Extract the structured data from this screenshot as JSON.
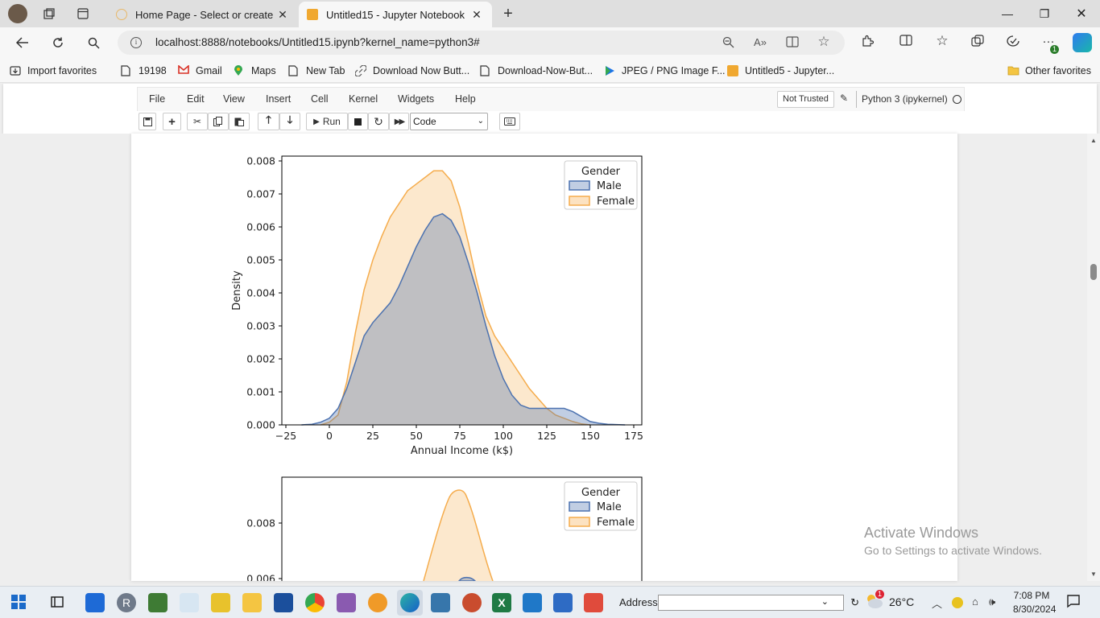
{
  "browser": {
    "tabs": [
      {
        "title": "Home Page - Select or create a n",
        "active": false
      },
      {
        "title": "Untitled15 - Jupyter Notebook",
        "active": true
      }
    ],
    "url": "localhost:8888/notebooks/Untitled15.ipynb?kernel_name=python3#",
    "favorites": [
      "Import favorites",
      "19198",
      "Gmail",
      "Maps",
      "New Tab",
      "Download Now Butt...",
      "Download-Now-But...",
      "JPEG / PNG Image F...",
      "Untitled5 - Jupyter..."
    ],
    "other_favorites": "Other favorites",
    "extensions_badge": "1"
  },
  "jupyter": {
    "menu": [
      "File",
      "Edit",
      "View",
      "Insert",
      "Cell",
      "Kernel",
      "Widgets",
      "Help"
    ],
    "trust": "Not Trusted",
    "kernel": "Python 3 (ipykernel)",
    "toolbar": {
      "run_label": "Run",
      "cell_type": "Code"
    }
  },
  "chart_data": [
    {
      "type": "area",
      "title": "",
      "xlabel": "Annual Income (k$)",
      "ylabel": "Density",
      "xlim": [
        -25,
        175
      ],
      "ylim": [
        0,
        0.008
      ],
      "x_ticks": [
        "−25",
        "0",
        "25",
        "50",
        "75",
        "100",
        "125",
        "150",
        "175"
      ],
      "y_ticks": [
        "0.000",
        "0.001",
        "0.002",
        "0.003",
        "0.004",
        "0.005",
        "0.006",
        "0.007",
        "0.008"
      ],
      "legend": {
        "title": "Gender",
        "position": "top-right"
      },
      "series": [
        {
          "name": "Male",
          "color": "#4c72b0",
          "x": [
            -16,
            -10,
            -5,
            0,
            5,
            10,
            15,
            20,
            25,
            30,
            35,
            40,
            45,
            50,
            55,
            60,
            65,
            70,
            75,
            80,
            85,
            90,
            95,
            100,
            105,
            110,
            115,
            120,
            125,
            130,
            135,
            140,
            145,
            150,
            155,
            160,
            165,
            170
          ],
          "y": [
            0,
            2e-05,
            8e-05,
            0.0002,
            0.0005,
            0.0011,
            0.0019,
            0.0027,
            0.0031,
            0.0034,
            0.0037,
            0.0042,
            0.0048,
            0.0054,
            0.0059,
            0.0063,
            0.0064,
            0.0062,
            0.0057,
            0.0049,
            0.004,
            0.003,
            0.0021,
            0.0014,
            0.0009,
            0.0006,
            0.0005,
            0.0005,
            0.0005,
            0.0005,
            0.0005,
            0.0004,
            0.00025,
            0.0001,
            5e-05,
            2e-05,
            1e-05,
            0
          ]
        },
        {
          "name": "Female",
          "color": "#f5ac4c",
          "x": [
            -5,
            0,
            5,
            10,
            15,
            20,
            25,
            30,
            35,
            40,
            45,
            50,
            55,
            60,
            65,
            70,
            75,
            80,
            85,
            90,
            95,
            100,
            105,
            110,
            115,
            120,
            125,
            130,
            135,
            140,
            145,
            150
          ],
          "y": [
            0,
            8e-05,
            0.0003,
            0.0013,
            0.0028,
            0.0041,
            0.005,
            0.0057,
            0.0063,
            0.0067,
            0.0071,
            0.0073,
            0.0075,
            0.0077,
            0.0077,
            0.0074,
            0.0066,
            0.0055,
            0.0043,
            0.0033,
            0.0027,
            0.0023,
            0.0019,
            0.0015,
            0.0011,
            0.0008,
            0.0005,
            0.0003,
            0.0002,
            0.0001,
            3e-05,
            0
          ]
        }
      ]
    },
    {
      "type": "area",
      "title": "",
      "xlabel": "",
      "ylabel": "",
      "ylim": [
        0,
        0.0095
      ],
      "y_ticks": [
        "0.006",
        "0.008"
      ],
      "legend": {
        "title": "Gender",
        "position": "top-right"
      },
      "series": [
        {
          "name": "Male",
          "color": "#4c72b0",
          "x": [],
          "y": []
        },
        {
          "name": "Female",
          "color": "#f5ac4c",
          "x": [],
          "y": []
        }
      ]
    }
  ],
  "watermark": {
    "line1": "Activate Windows",
    "line2": "Go to Settings to activate Windows."
  },
  "taskbar": {
    "address_label": "Address",
    "temperature": "26°C",
    "weather_badge": "1",
    "time": "7:08 PM",
    "date": "8/30/2024"
  }
}
